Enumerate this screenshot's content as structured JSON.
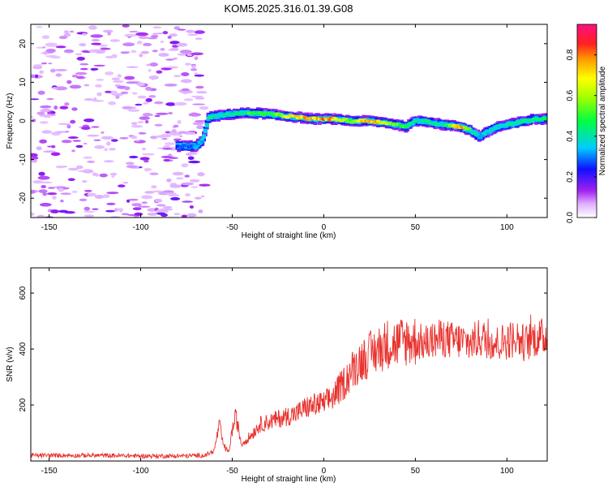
{
  "title": "KOM5.2025.316.01.39.G08",
  "chart_data": [
    {
      "type": "heatmap",
      "name": "spectrogram",
      "xlabel": "Height of straight line (km)",
      "ylabel": "Frequency (Hz)",
      "xlim": [
        -160,
        122
      ],
      "ylim": [
        -25,
        25
      ],
      "xticks": [
        -150,
        -100,
        -50,
        0,
        50,
        100
      ],
      "xtick_labels": [
        "-150",
        "-100",
        "-50",
        "0",
        "50",
        "100"
      ],
      "yticks": [
        -20,
        -10,
        0,
        10,
        20
      ],
      "ytick_labels": [
        "-20",
        "-10",
        "0",
        "10",
        "20"
      ],
      "colorbar": {
        "label": "Normalized spectral amplitude",
        "range": [
          0.0,
          0.95
        ],
        "ticks": [
          0.0,
          0.2,
          0.4,
          0.6,
          0.8
        ],
        "tick_labels": [
          "0.0",
          "0.2",
          "0.4",
          "0.6",
          "0.8"
        ]
      },
      "ridge": {
        "x": [
          -80,
          -70,
          -66,
          -63,
          -55,
          -45,
          -35,
          -25,
          -15,
          -5,
          5,
          15,
          25,
          35,
          45,
          50,
          55,
          65,
          75,
          80,
          85,
          95,
          105,
          115,
          122
        ],
        "freq": [
          -6.5,
          -6.5,
          -5.0,
          1.0,
          1.5,
          2.0,
          2.0,
          1.5,
          1.0,
          0.5,
          0.5,
          0.0,
          0.0,
          -0.5,
          -1.5,
          0.0,
          0.0,
          -1.0,
          -1.5,
          -2.5,
          -4.0,
          -1.5,
          -0.5,
          0.5,
          0.5
        ],
        "amp": [
          0.25,
          0.3,
          0.35,
          0.45,
          0.4,
          0.45,
          0.5,
          0.55,
          0.75,
          0.8,
          0.75,
          0.55,
          0.85,
          0.6,
          0.5,
          0.4,
          0.45,
          0.4,
          0.8,
          0.45,
          0.35,
          0.4,
          0.4,
          0.45,
          0.45
        ]
      }
    },
    {
      "type": "line",
      "name": "snr",
      "xlabel": "Height of straight line (km)",
      "ylabel": "SNR (v/v)",
      "xlim": [
        -160,
        122
      ],
      "ylim": [
        0,
        690
      ],
      "xticks": [
        -150,
        -100,
        -50,
        0,
        50,
        100
      ],
      "xtick_labels": [
        "-150",
        "-100",
        "-50",
        "0",
        "50",
        "100"
      ],
      "yticks": [
        200,
        400,
        600
      ],
      "ytick_labels": [
        "200",
        "400",
        "600"
      ],
      "color": "#e8322e",
      "series": [
        {
          "name": "SNR",
          "x": [
            -160,
            -140,
            -120,
            -100,
            -80,
            -65,
            -60,
            -57,
            -55,
            -52,
            -50,
            -48,
            -45,
            -40,
            -35,
            -30,
            -25,
            -20,
            -15,
            -10,
            -5,
            0,
            5,
            10,
            15,
            20,
            25,
            30,
            35,
            40,
            45,
            50,
            55,
            60,
            65,
            70,
            75,
            80,
            85,
            90,
            95,
            100,
            105,
            110,
            115,
            120,
            122
          ],
          "y": [
            20,
            20,
            20,
            18,
            18,
            20,
            35,
            130,
            60,
            30,
            110,
            160,
            60,
            90,
            130,
            140,
            150,
            160,
            170,
            190,
            200,
            205,
            230,
            270,
            320,
            360,
            380,
            400,
            420,
            420,
            430,
            430,
            420,
            430,
            440,
            430,
            430,
            420,
            440,
            430,
            420,
            430,
            440,
            420,
            440,
            440,
            450
          ]
        }
      ]
    }
  ]
}
